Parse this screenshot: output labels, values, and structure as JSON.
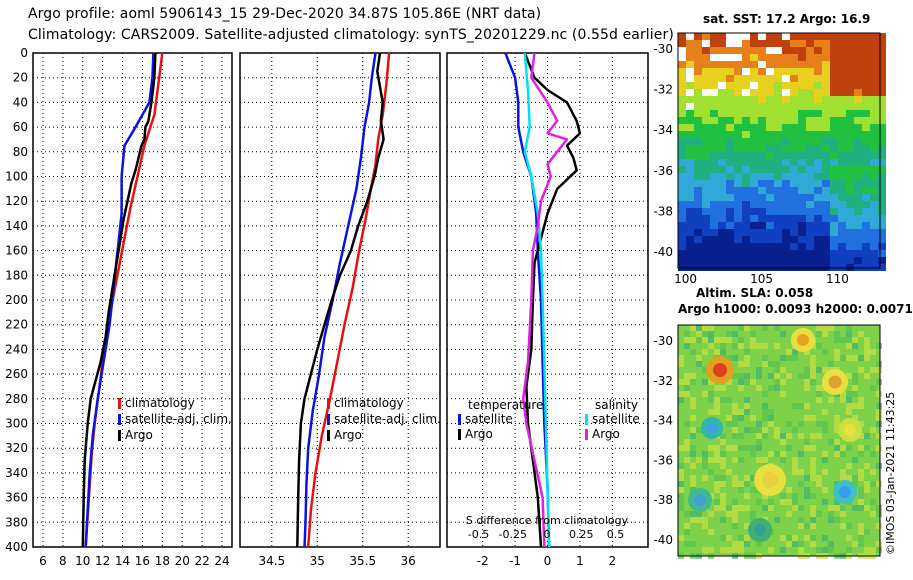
{
  "title": {
    "line1": "Argo profile: aoml 5906143_15 29-Dec-2020 34.87S 105.86E (NRT data)",
    "line2": "Climatology: CARS2009. Satellite-adjusted climatology: synTS_20201229.nc (0.55d earlier)"
  },
  "colors": {
    "red": "#e81010",
    "blue": "#0a14e0",
    "black": "#000000",
    "cyan": "#00e0f0",
    "magenta": "#e020e0"
  },
  "chart_data": [
    {
      "type": "line",
      "name": "temperature-profile",
      "xlim": [
        5,
        25
      ],
      "ylim": [
        400,
        0
      ],
      "xticks": [
        6,
        8,
        10,
        12,
        14,
        16,
        18,
        20,
        22,
        24
      ],
      "yticks": [
        0,
        20,
        40,
        60,
        80,
        100,
        120,
        140,
        160,
        180,
        200,
        220,
        240,
        260,
        280,
        300,
        320,
        340,
        360,
        380,
        400
      ],
      "series": [
        {
          "name": "climatology",
          "color": "red",
          "points": [
            [
              18.0,
              0
            ],
            [
              17.6,
              25
            ],
            [
              17.2,
              50
            ],
            [
              16.2,
              75
            ],
            [
              15.5,
              100
            ],
            [
              14.8,
              125
            ],
            [
              14.2,
              150
            ],
            [
              13.6,
              175
            ],
            [
              13.0,
              200
            ],
            [
              12.5,
              225
            ],
            [
              12.0,
              250
            ],
            [
              11.6,
              275
            ],
            [
              11.2,
              300
            ],
            [
              10.9,
              325
            ],
            [
              10.7,
              350
            ],
            [
              10.5,
              375
            ],
            [
              10.3,
              400
            ]
          ]
        },
        {
          "name": "satellite-adj. clim.",
          "color": "blue",
          "points": [
            [
              17.1,
              0
            ],
            [
              17.0,
              20
            ],
            [
              16.7,
              40
            ],
            [
              15.3,
              60
            ],
            [
              14.2,
              75
            ],
            [
              13.9,
              100
            ],
            [
              13.9,
              130
            ],
            [
              13.5,
              160
            ],
            [
              13.1,
              190
            ],
            [
              12.7,
              220
            ],
            [
              12.1,
              250
            ],
            [
              11.5,
              280
            ],
            [
              11.0,
              310
            ],
            [
              10.7,
              340
            ],
            [
              10.5,
              370
            ],
            [
              10.3,
              400
            ]
          ]
        },
        {
          "name": "Argo",
          "color": "black",
          "points": [
            [
              17.3,
              0
            ],
            [
              17.2,
              20
            ],
            [
              16.9,
              40
            ],
            [
              16.6,
              55
            ],
            [
              16.3,
              60
            ],
            [
              16.2,
              70
            ],
            [
              15.9,
              75
            ],
            [
              15.6,
              85
            ],
            [
              15.3,
              95
            ],
            [
              14.9,
              105
            ],
            [
              14.5,
              120
            ],
            [
              14.1,
              135
            ],
            [
              13.8,
              150
            ],
            [
              13.4,
              170
            ],
            [
              13.0,
              190
            ],
            [
              12.6,
              210
            ],
            [
              12.3,
              230
            ],
            [
              11.8,
              250
            ],
            [
              11.3,
              265
            ],
            [
              10.8,
              280
            ],
            [
              10.5,
              300
            ],
            [
              10.2,
              330
            ],
            [
              10.1,
              360
            ],
            [
              10.0,
              400
            ]
          ]
        }
      ],
      "legend": [
        {
          "label": "climatology",
          "color": "red"
        },
        {
          "label": "satellite-adj. clim.",
          "color": "blue"
        },
        {
          "label": "Argo",
          "color": "black"
        }
      ]
    },
    {
      "type": "line",
      "name": "salinity-profile",
      "xlim": [
        34.15,
        36.35
      ],
      "xticks": [
        34.5,
        35,
        35.5,
        36
      ],
      "tick_labels": [
        "34.5",
        "35",
        "35.5",
        "36"
      ],
      "series": [
        {
          "name": "climatology",
          "color": "red",
          "points": [
            [
              35.79,
              0
            ],
            [
              35.76,
              25
            ],
            [
              35.72,
              50
            ],
            [
              35.67,
              70
            ],
            [
              35.64,
              90
            ],
            [
              35.59,
              110
            ],
            [
              35.53,
              135
            ],
            [
              35.46,
              160
            ],
            [
              35.39,
              190
            ],
            [
              35.3,
              220
            ],
            [
              35.22,
              250
            ],
            [
              35.14,
              280
            ],
            [
              35.05,
              310
            ],
            [
              34.98,
              340
            ],
            [
              34.93,
              370
            ],
            [
              34.9,
              400
            ]
          ]
        },
        {
          "name": "satellite-adj. clim.",
          "color": "blue",
          "points": [
            [
              35.64,
              0
            ],
            [
              35.6,
              20
            ],
            [
              35.57,
              40
            ],
            [
              35.52,
              60
            ],
            [
              35.48,
              85
            ],
            [
              35.43,
              110
            ],
            [
              35.34,
              140
            ],
            [
              35.25,
              170
            ],
            [
              35.17,
              200
            ],
            [
              35.08,
              230
            ],
            [
              35.02,
              260
            ],
            [
              34.95,
              290
            ],
            [
              34.9,
              320
            ],
            [
              34.88,
              350
            ],
            [
              34.87,
              380
            ],
            [
              34.86,
              400
            ]
          ]
        },
        {
          "name": "Argo",
          "color": "black",
          "points": [
            [
              35.69,
              0
            ],
            [
              35.66,
              15
            ],
            [
              35.72,
              40
            ],
            [
              35.7,
              55
            ],
            [
              35.73,
              70
            ],
            [
              35.67,
              85
            ],
            [
              35.63,
              100
            ],
            [
              35.55,
              120
            ],
            [
              35.45,
              140
            ],
            [
              35.37,
              160
            ],
            [
              35.25,
              180
            ],
            [
              35.16,
              200
            ],
            [
              35.08,
              220
            ],
            [
              35.0,
              240
            ],
            [
              34.93,
              260
            ],
            [
              34.86,
              280
            ],
            [
              34.82,
              300
            ],
            [
              34.8,
              330
            ],
            [
              34.79,
              360
            ],
            [
              34.78,
              400
            ]
          ]
        }
      ],
      "legend": [
        {
          "label": "climatology",
          "color": "red"
        },
        {
          "label": "satellite-adj. clim.",
          "color": "blue"
        },
        {
          "label": "Argo",
          "color": "black"
        }
      ]
    },
    {
      "type": "line",
      "name": "difference-profile",
      "xlim": [
        -3.1,
        3.1
      ],
      "xticks": [
        -2,
        -1,
        0,
        1,
        2
      ],
      "tick_labels": [
        "-2",
        "-1",
        "0",
        "1",
        "2"
      ],
      "top_xticks": [
        -0.5,
        -0.25,
        0,
        0.25,
        0.5
      ],
      "top_tick_labels": [
        "-0.5",
        "-0.25",
        "0",
        "0.25",
        "0.5"
      ],
      "inner_label": "S difference from climatology",
      "series": [
        {
          "name": "temperature satellite",
          "color": "blue",
          "points": [
            [
              -1.3,
              0
            ],
            [
              -1.0,
              20
            ],
            [
              -0.9,
              40
            ],
            [
              -0.9,
              60
            ],
            [
              -0.75,
              80
            ],
            [
              -0.5,
              100
            ],
            [
              -0.35,
              130
            ],
            [
              -0.3,
              160
            ],
            [
              -0.2,
              200
            ],
            [
              -0.15,
              250
            ],
            [
              -0.1,
              300
            ],
            [
              0.0,
              350
            ],
            [
              0.05,
              400
            ]
          ]
        },
        {
          "name": "temperature Argo",
          "color": "black",
          "points": [
            [
              -0.7,
              0
            ],
            [
              -0.4,
              20
            ],
            [
              0.0,
              30
            ],
            [
              0.6,
              40
            ],
            [
              0.9,
              55
            ],
            [
              1.0,
              65
            ],
            [
              0.6,
              75
            ],
            [
              0.8,
              85
            ],
            [
              0.9,
              95
            ],
            [
              0.3,
              110
            ],
            [
              0.0,
              130
            ],
            [
              -0.2,
              150
            ],
            [
              -0.4,
              170
            ],
            [
              -0.45,
              200
            ],
            [
              -0.5,
              240
            ],
            [
              -0.65,
              270
            ],
            [
              -0.6,
              300
            ],
            [
              -0.45,
              330
            ],
            [
              -0.3,
              360
            ],
            [
              -0.2,
              400
            ]
          ]
        },
        {
          "name": "salinity satellite",
          "color": "cyan",
          "points": [
            [
              -0.7,
              0
            ],
            [
              -0.6,
              30
            ],
            [
              -0.55,
              60
            ],
            [
              -0.7,
              80
            ],
            [
              -0.5,
              100
            ],
            [
              -0.3,
              130
            ],
            [
              -0.2,
              160
            ],
            [
              -0.15,
              200
            ],
            [
              -0.1,
              250
            ],
            [
              -0.05,
              300
            ],
            [
              0.0,
              350
            ],
            [
              0.05,
              400
            ]
          ]
        },
        {
          "name": "salinity Argo",
          "color": "magenta",
          "points": [
            [
              -0.4,
              0
            ],
            [
              -0.5,
              20
            ],
            [
              0.0,
              40
            ],
            [
              0.3,
              55
            ],
            [
              0.0,
              65
            ],
            [
              0.6,
              70
            ],
            [
              0.3,
              80
            ],
            [
              0.0,
              90
            ],
            [
              0.1,
              100
            ],
            [
              -0.2,
              120
            ],
            [
              -0.3,
              140
            ],
            [
              -0.45,
              160
            ],
            [
              -0.5,
              200
            ],
            [
              -0.6,
              250
            ],
            [
              -0.75,
              280
            ],
            [
              -0.65,
              300
            ],
            [
              -0.4,
              330
            ],
            [
              -0.15,
              360
            ],
            [
              -0.1,
              400
            ]
          ]
        }
      ],
      "legend_groups": [
        {
          "title": "temperature",
          "items": [
            {
              "label": "satellite",
              "color": "blue"
            },
            {
              "label": "Argo",
              "color": "black"
            }
          ]
        },
        {
          "title": "salinity",
          "items": [
            {
              "label": "satellite",
              "color": "cyan"
            },
            {
              "label": "Argo",
              "color": "magenta"
            }
          ]
        }
      ]
    },
    {
      "type": "heatmap",
      "name": "sst-map",
      "title": "sat. SST: 17.2 Argo: 16.9",
      "xlim": [
        99.5,
        112.8
      ],
      "ylim": [
        -40.8,
        -29.2
      ],
      "xticks": [
        100,
        105,
        110
      ],
      "xtick_labels": [
        "100",
        "105",
        "110"
      ],
      "yticks": [
        -30,
        -32,
        -34,
        -36,
        -38,
        -40
      ],
      "ytick_labels": [
        "-30",
        "-32",
        "-34",
        "-36",
        "-38",
        "-40"
      ]
    },
    {
      "type": "heatmap",
      "name": "sla-map",
      "title_lines": [
        "Altim. SLA: 0.058",
        "Argo h1000: 0.0093 h2000: 0.0071"
      ],
      "ylim": [
        -40.8,
        -29.2
      ],
      "yticks": [
        -30,
        -32,
        -34,
        -36,
        -38,
        -40
      ],
      "ytick_labels": [
        "-30",
        "-32",
        "-34",
        "-36",
        "-38",
        "-40"
      ]
    }
  ],
  "stamp": "©IMOS 03-Jan-2021 11:43:25"
}
